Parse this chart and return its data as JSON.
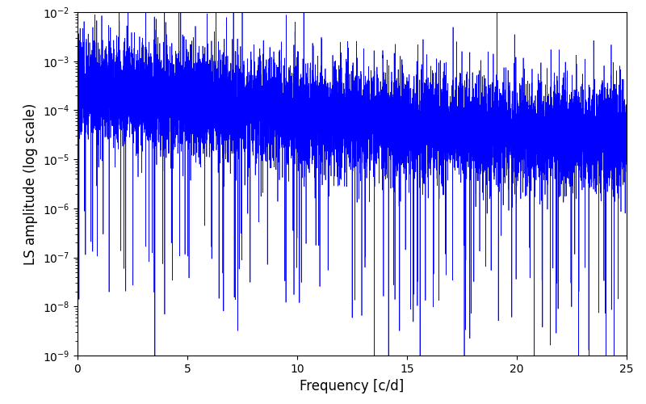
{
  "title": "",
  "xlabel": "Frequency [c/d]",
  "ylabel": "LS amplitude (log scale)",
  "xlim": [
    0,
    25
  ],
  "ylim": [
    1e-09,
    0.01
  ],
  "line_color": "#0000ff",
  "line_width": 0.5,
  "background_color": "#ffffff",
  "freq_min": 0.0,
  "freq_max": 25.0,
  "n_points": 10000,
  "seed": 7
}
